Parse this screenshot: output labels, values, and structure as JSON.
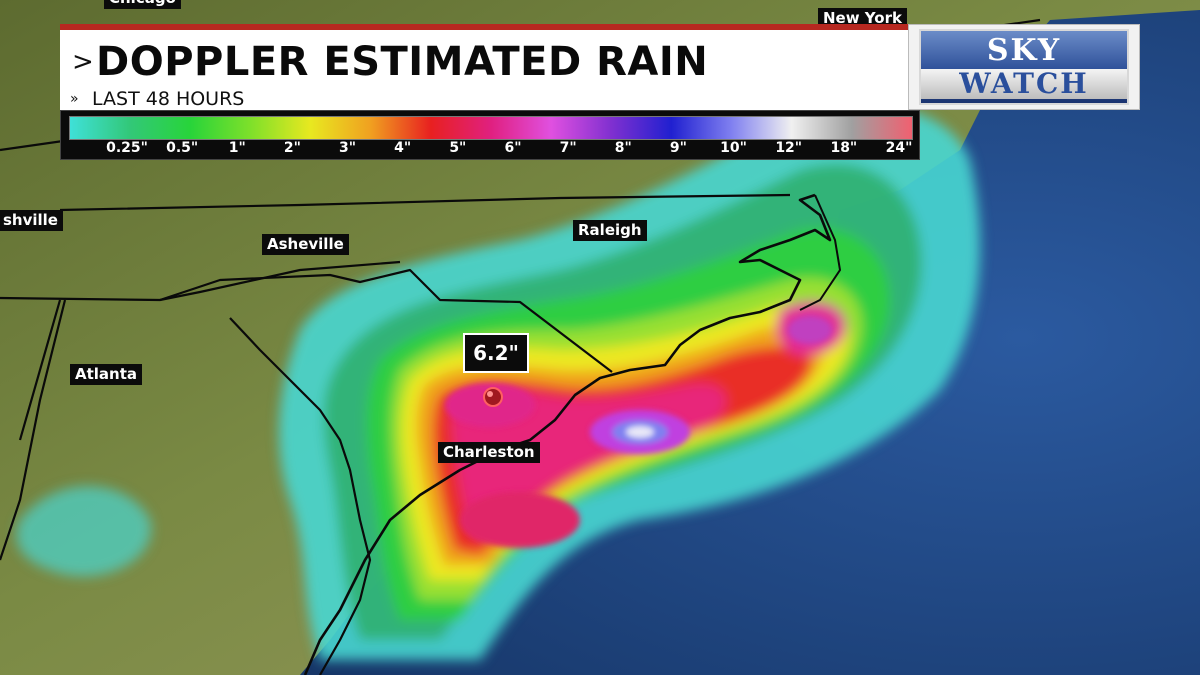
{
  "header": {
    "title": "DOPPLER ESTIMATED RAIN",
    "title_chevron": ">",
    "subtitle": "LAST 48 HOURS",
    "subtitle_chevron": "»",
    "accent_color": "#b72820"
  },
  "logo": {
    "top": "SKY",
    "bottom": "WATCH"
  },
  "legend": {
    "unit": "inches",
    "labels": [
      "0.25\"",
      "0.5\"",
      "1\"",
      "2\"",
      "3\"",
      "4\"",
      "5\"",
      "6\"",
      "7\"",
      "8\"",
      "9\"",
      "10\"",
      "12\"",
      "18\"",
      "24\""
    ],
    "colors": [
      "#3fe0d8",
      "#32c878",
      "#28d43a",
      "#7ee02a",
      "#e8e820",
      "#f0a020",
      "#e82020",
      "#e02080",
      "#e050e0",
      "#8030d0",
      "#2020d0",
      "#8080f0",
      "#f0f0f0",
      "#a0a0a0",
      "#f06070"
    ]
  },
  "cities": {
    "new_york": "New York",
    "chicago": "Chicago",
    "nashville": "shville",
    "asheville": "Asheville",
    "raleigh": "Raleigh",
    "atlanta": "Atlanta",
    "charleston": "Charleston"
  },
  "callout": {
    "value": "6.2\"",
    "max_rain_inches": 6.2
  },
  "map_colors": {
    "ocean": "#1e3f75",
    "land": "#6d7a3c",
    "border": "#0a0a0a"
  }
}
